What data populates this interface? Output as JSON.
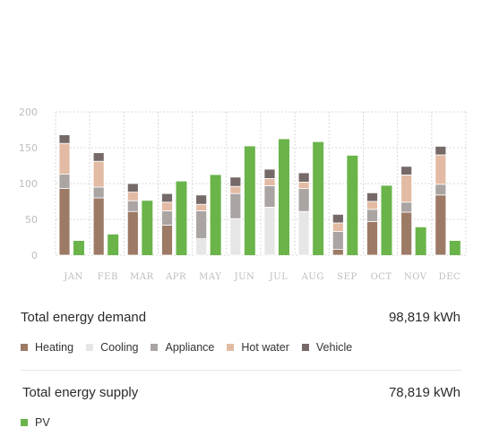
{
  "colors": {
    "heating": "#9c7a66",
    "cooling": "#e6e6e6",
    "appliance": "#aaa4a3",
    "hot_water": "#e3bba4",
    "vehicle": "#766a69",
    "pv": "#6ab44a",
    "grid": "#d8d8d8"
  },
  "chart_data": {
    "type": "bar",
    "stacked_series": [
      {
        "name": "Heating",
        "color_key": "heating"
      },
      {
        "name": "Cooling",
        "color_key": "cooling"
      },
      {
        "name": "Appliance",
        "color_key": "appliance"
      },
      {
        "name": "Hot water",
        "color_key": "hot_water"
      },
      {
        "name": "Vehicle",
        "color_key": "vehicle"
      }
    ],
    "categories": [
      "JAN",
      "FEB",
      "MAR",
      "APR",
      "MAY",
      "JUN",
      "JUL",
      "AUG",
      "SEP",
      "OCT",
      "NOV",
      "DEC"
    ],
    "series": [
      {
        "name": "Heating",
        "values": [
          93,
          80,
          61,
          42,
          0,
          0,
          0,
          0,
          8,
          47,
          60,
          84
        ]
      },
      {
        "name": "Cooling",
        "values": [
          0,
          0,
          0,
          0,
          23,
          51,
          67,
          61,
          0,
          0,
          0,
          0
        ]
      },
      {
        "name": "Appliance",
        "values": [
          20,
          15,
          15,
          20,
          39,
          35,
          30,
          32,
          25,
          17,
          14,
          15
        ]
      },
      {
        "name": "Hot water",
        "values": [
          43,
          36,
          12,
          12,
          9,
          10,
          10,
          9,
          12,
          11,
          38,
          41
        ]
      },
      {
        "name": "Vehicle",
        "values": [
          12,
          12,
          12,
          12,
          13,
          13,
          13,
          13,
          12,
          12,
          12,
          12
        ]
      },
      {
        "name": "PV",
        "values": [
          20,
          29,
          76,
          103,
          112,
          152,
          162,
          158,
          139,
          97,
          39,
          20
        ]
      }
    ],
    "ylim": [
      0,
      200
    ],
    "yticks": [
      0,
      50,
      100,
      150,
      200
    ],
    "grid": true
  },
  "demand": {
    "title": "Total energy demand",
    "value": "98,819 kWh",
    "legend": [
      "Heating",
      "Cooling",
      "Appliance",
      "Hot water",
      "Vehicle"
    ]
  },
  "supply": {
    "title": "Total energy supply",
    "value": "78,819 kWh",
    "legend": [
      "PV"
    ]
  }
}
